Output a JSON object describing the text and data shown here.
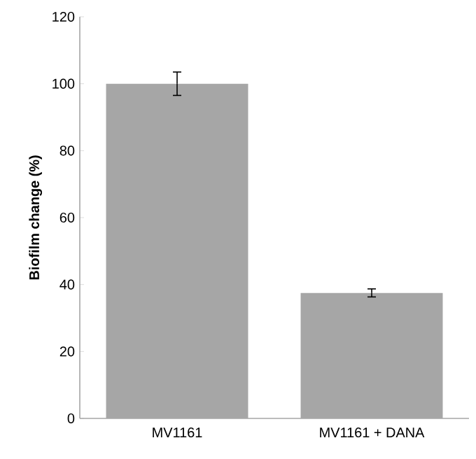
{
  "chart_data": {
    "type": "bar",
    "ylabel": "Biofilm change (%)",
    "categories": [
      "MV1161",
      "MV1161 + DANA"
    ],
    "values": [
      100,
      37.5
    ],
    "errors": [
      3.5,
      1.2
    ],
    "color": "#a6a6a6",
    "ylim": [
      0,
      120
    ],
    "yticks": [
      0,
      20,
      40,
      60,
      80,
      100,
      120
    ],
    "grid": false
  }
}
